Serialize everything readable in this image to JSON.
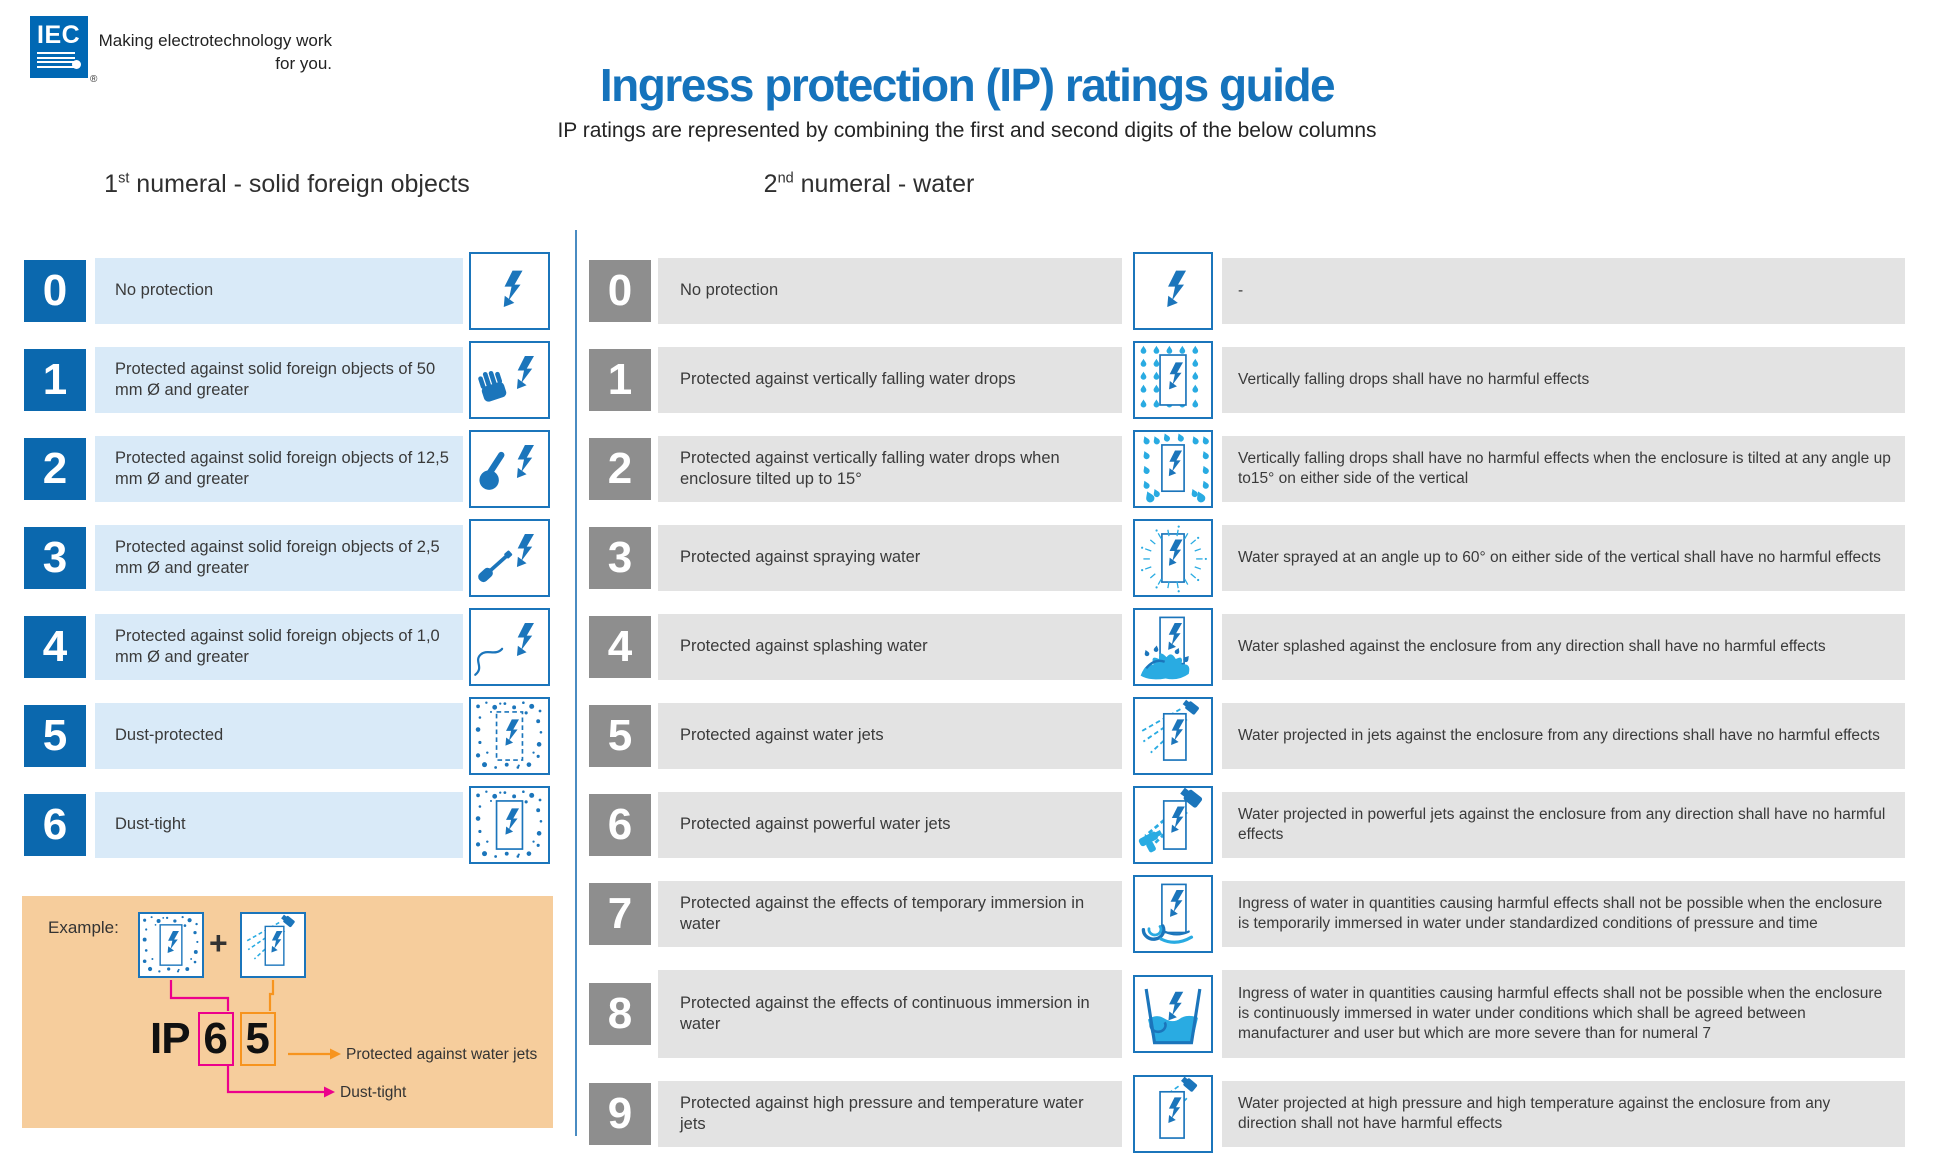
{
  "brand": {
    "logo_text": "IEC",
    "registered_mark": "®",
    "tagline_line1": "Making electrotechnology work",
    "tagline_line2": "for you."
  },
  "header": {
    "title": "Ingress protection (IP) ratings guide",
    "subtitle": "IP ratings are represented by combining the first and second digits of the below columns"
  },
  "colors": {
    "brand_blue": "#0B68AE",
    "icon_blue": "#1B75BB",
    "water_blue": "#29ABE2",
    "light_blue_band": "#D9EAF8",
    "gray_square": "#8E8E8E",
    "gray_band": "#E3E3E3",
    "title_blue": "#1573BC",
    "example_background": "#F6CD9C",
    "magenta": "#EC008C",
    "orange": "#F7941E"
  },
  "left_column": {
    "heading_number": "1",
    "heading_superscript": "st",
    "heading_rest": " numeral - solid foreign objects",
    "rows": [
      {
        "digit": "0",
        "label": "No protection",
        "icon": "bolt-icon"
      },
      {
        "digit": "1",
        "label": "Protected against solid foreign objects of 50 mm Ø and greater",
        "icon": "hand-bolt-icon"
      },
      {
        "digit": "2",
        "label": "Protected against solid foreign objects of 12,5 mm Ø and greater",
        "icon": "touch-bolt-icon"
      },
      {
        "digit": "3",
        "label": "Protected against solid foreign objects of 2,5 mm Ø and greater",
        "icon": "tool-bolt-icon"
      },
      {
        "digit": "4",
        "label": "Protected against solid foreign objects of 1,0 mm Ø and greater",
        "icon": "wire-bolt-icon"
      },
      {
        "digit": "5",
        "label": "Dust-protected",
        "icon": "dust-protected-icon"
      },
      {
        "digit": "6",
        "label": "Dust-tight",
        "icon": "dust-tight-icon"
      }
    ]
  },
  "right_column": {
    "heading_number": "2",
    "heading_superscript": "nd",
    "heading_rest": " numeral - water",
    "rows": [
      {
        "digit": "0",
        "label": "No protection",
        "description": "-",
        "icon": "bolt-icon"
      },
      {
        "digit": "1",
        "label": "Protected against vertically falling water drops",
        "description": "Vertically falling drops shall have no harmful effects",
        "icon": "drip-icon"
      },
      {
        "digit": "2",
        "label": "Protected against vertically falling water drops when enclosure tilted up to 15°",
        "description": "Vertically falling drops shall have no harmful effects when the enclosure is tilted at any angle up to15° on either side of the vertical",
        "icon": "drip-tilted-icon"
      },
      {
        "digit": "3",
        "label": "Protected against spraying water",
        "description": "Water sprayed at an angle up to 60° on either side of the vertical shall have no harmful effects",
        "icon": "spray-icon"
      },
      {
        "digit": "4",
        "label": "Protected against splashing water",
        "description": "Water splashed against the enclosure from any direction shall have no harmful effects",
        "icon": "splash-icon"
      },
      {
        "digit": "5",
        "label": "Protected against water jets",
        "description": "Water projected in jets against the enclosure from any directions shall have no harmful effects",
        "icon": "water-jet-icon"
      },
      {
        "digit": "6",
        "label": "Protected against powerful water jets",
        "description": "Water projected in powerful jets against the enclosure from any direction shall have no harmful effects",
        "icon": "powerful-water-jet-icon"
      },
      {
        "digit": "7",
        "label": "Protected against the effects of temporary immersion in water",
        "description": "Ingress of water in quantities causing harmful effects shall not be possible when the enclosure is temporarily immersed in water under standardized conditions of pressure and time",
        "icon": "immersion-icon"
      },
      {
        "digit": "8",
        "label": "Protected against the effects of continuous immersion in water",
        "description": "Ingress of water in quantities causing harmful effects shall not be possible when the enclosure is continuously immersed in water under conditions which shall be agreed between manufacturer and user but which are more severe than for numeral 7",
        "icon": "continuous-immersion-icon"
      },
      {
        "digit": "9",
        "label": "Protected against high pressure and temperature water jets",
        "description": "Water projected at high pressure and high temperature against the enclosure from any direction shall not have harmful effects",
        "icon": "high-pressure-jet-icon"
      }
    ]
  },
  "example": {
    "label": "Example:",
    "plus_sign": "+",
    "first_icon": "dust-tight-icon",
    "second_icon": "water-jet-icon",
    "ip_prefix": "IP",
    "first_digit": "6",
    "second_digit": "5",
    "first_digit_meaning": "Dust-tight",
    "second_digit_meaning": "Protected against water jets"
  }
}
